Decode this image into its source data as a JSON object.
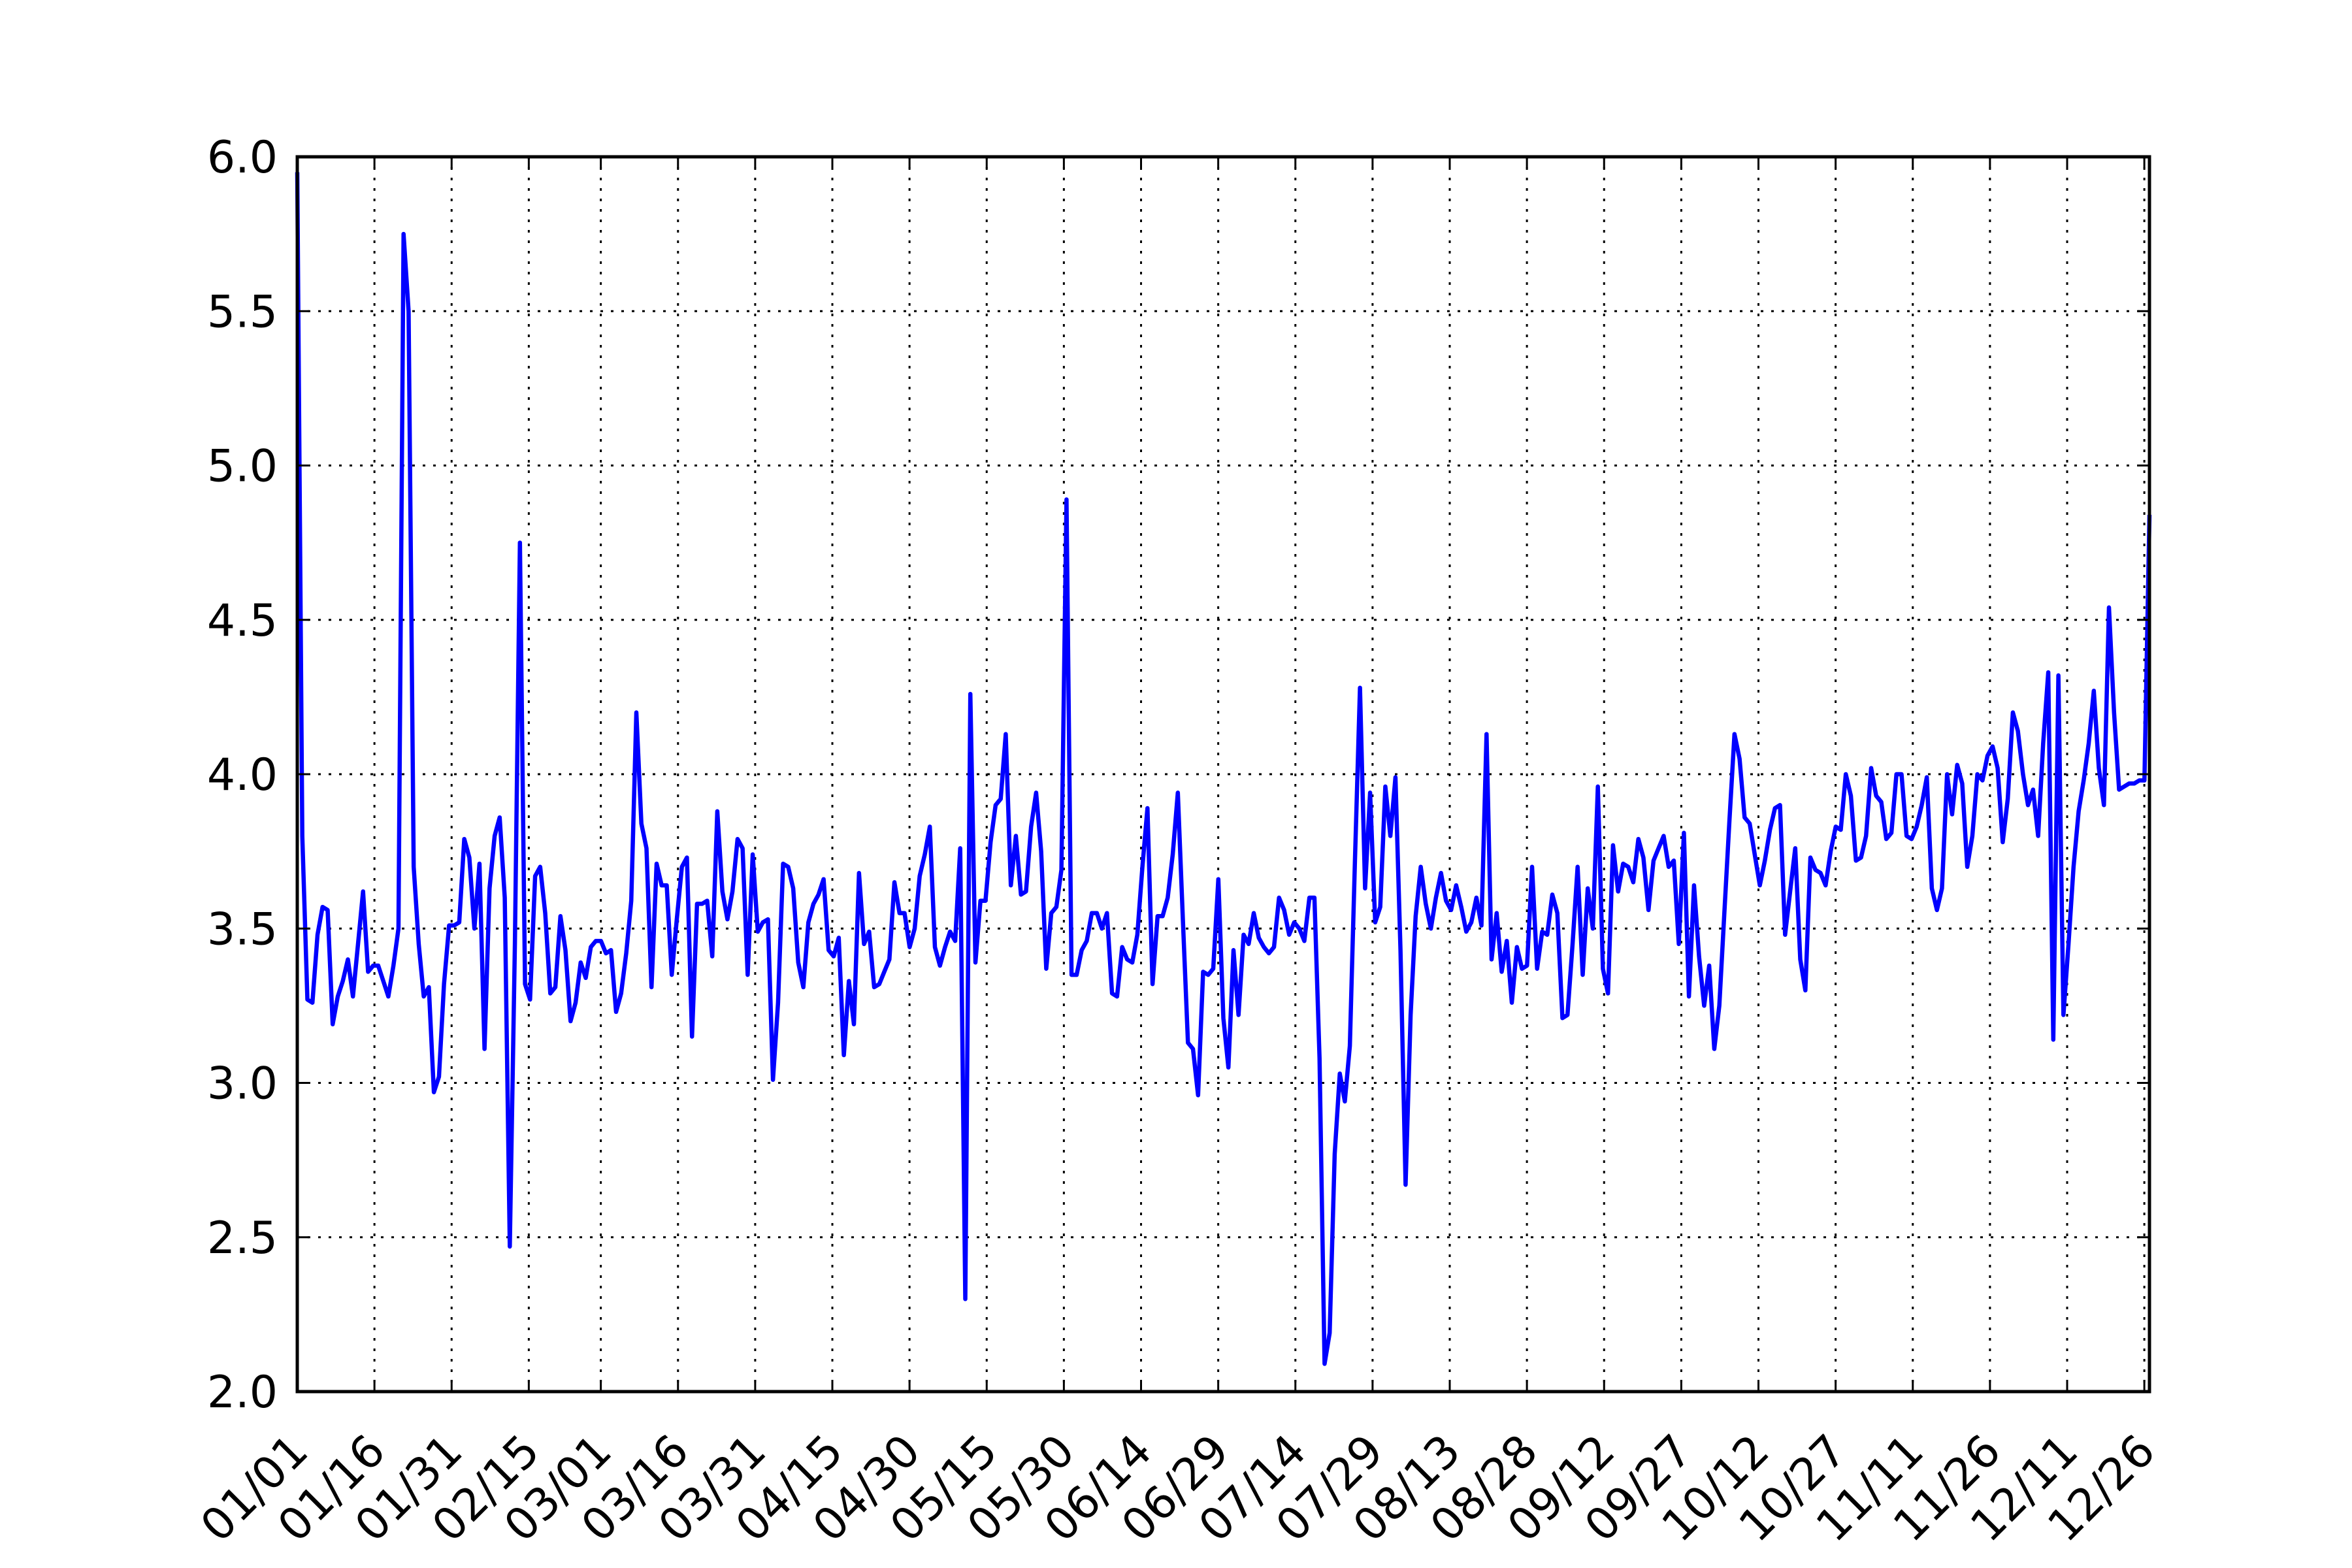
{
  "chart_data": {
    "type": "line",
    "title": "",
    "xlabel": "",
    "ylabel": "",
    "ylim": [
      2.0,
      6.0
    ],
    "xlim": [
      "01/01",
      "12/27"
    ],
    "grid": true,
    "colors": {
      "line": "#0000ff",
      "frame": "#000000",
      "background": "#ffffff"
    },
    "y_ticks": [
      "2.0",
      "2.5",
      "3.0",
      "3.5",
      "4.0",
      "4.5",
      "5.0",
      "5.5",
      "6.0"
    ],
    "x_ticks": [
      "01/01",
      "01/16",
      "01/31",
      "02/15",
      "03/01",
      "03/16",
      "03/31",
      "04/15",
      "04/30",
      "05/15",
      "05/30",
      "06/14",
      "06/29",
      "07/14",
      "07/29",
      "08/13",
      "08/28",
      "09/12",
      "09/27",
      "10/12",
      "10/27",
      "11/11",
      "11/26",
      "12/11",
      "12/26"
    ],
    "series": [
      {
        "values": [
          5.95,
          3.8,
          3.27,
          3.26,
          3.48,
          3.57,
          3.56,
          3.19,
          3.28,
          3.33,
          3.4,
          3.28,
          3.45,
          3.62,
          3.36,
          3.38,
          3.38,
          3.33,
          3.28,
          3.38,
          3.5,
          5.75,
          5.5,
          3.7,
          3.45,
          3.28,
          3.31,
          2.97,
          3.02,
          3.32,
          3.51,
          3.51,
          3.52,
          3.79,
          3.73,
          3.5,
          3.71,
          3.11,
          3.63,
          3.8,
          3.86,
          3.6,
          2.47,
          3.45,
          4.75,
          3.32,
          3.27,
          3.67,
          3.7,
          3.55,
          3.29,
          3.31,
          3.54,
          3.43,
          3.2,
          3.26,
          3.39,
          3.34,
          3.44,
          3.46,
          3.46,
          3.42,
          3.43,
          3.23,
          3.29,
          3.42,
          3.59,
          4.2,
          3.84,
          3.76,
          3.31,
          3.71,
          3.64,
          3.64,
          3.35,
          3.53,
          3.7,
          3.73,
          3.15,
          3.58,
          3.58,
          3.59,
          3.41,
          3.88,
          3.62,
          3.53,
          3.62,
          3.79,
          3.76,
          3.35,
          3.74,
          3.49,
          3.52,
          3.53,
          3.01,
          3.26,
          3.71,
          3.7,
          3.63,
          3.39,
          3.31,
          3.52,
          3.58,
          3.61,
          3.66,
          3.43,
          3.41,
          3.47,
          3.09,
          3.33,
          3.19,
          3.68,
          3.45,
          3.49,
          3.31,
          3.32,
          3.36,
          3.4,
          3.65,
          3.55,
          3.55,
          3.44,
          3.5,
          3.67,
          3.74,
          3.83,
          3.44,
          3.38,
          3.44,
          3.49,
          3.46,
          3.76,
          2.3,
          4.26,
          3.39,
          3.59,
          3.59,
          3.78,
          3.9,
          3.92,
          4.13,
          3.64,
          3.8,
          3.61,
          3.62,
          3.83,
          3.94,
          3.75,
          3.37,
          3.55,
          3.57,
          3.69,
          4.89,
          3.35,
          3.35,
          3.43,
          3.46,
          3.55,
          3.55,
          3.5,
          3.55,
          3.29,
          3.28,
          3.44,
          3.4,
          3.39,
          3.48,
          3.7,
          3.89,
          3.32,
          3.54,
          3.54,
          3.6,
          3.74,
          3.94,
          3.53,
          3.13,
          3.11,
          2.96,
          3.36,
          3.35,
          3.37,
          3.66,
          3.21,
          3.05,
          3.43,
          3.22,
          3.48,
          3.45,
          3.55,
          3.47,
          3.44,
          3.42,
          3.44,
          3.6,
          3.56,
          3.48,
          3.52,
          3.5,
          3.46,
          3.6,
          3.6,
          3.08,
          2.09,
          2.19,
          2.77,
          3.03,
          2.94,
          3.12,
          3.72,
          4.28,
          3.63,
          3.94,
          3.52,
          3.57,
          3.96,
          3.8,
          3.99,
          3.43,
          2.67,
          3.22,
          3.54,
          3.7,
          3.58,
          3.5,
          3.6,
          3.68,
          3.59,
          3.56,
          3.64,
          3.57,
          3.49,
          3.52,
          3.6,
          3.51,
          4.13,
          3.4,
          3.55,
          3.36,
          3.46,
          3.26,
          3.44,
          3.37,
          3.38,
          3.7,
          3.37,
          3.49,
          3.48,
          3.61,
          3.55,
          3.21,
          3.22,
          3.45,
          3.7,
          3.35,
          3.63,
          3.5,
          3.96,
          3.37,
          3.29,
          3.77,
          3.62,
          3.71,
          3.7,
          3.65,
          3.79,
          3.73,
          3.56,
          3.72,
          3.76,
          3.8,
          3.7,
          3.72,
          3.45,
          3.81,
          3.28,
          3.64,
          3.41,
          3.25,
          3.38,
          3.11,
          3.25,
          3.55,
          3.85,
          4.13,
          4.05,
          3.86,
          3.84,
          3.74,
          3.64,
          3.72,
          3.82,
          3.89,
          3.9,
          3.48,
          3.62,
          3.76,
          3.4,
          3.3,
          3.73,
          3.69,
          3.68,
          3.64,
          3.75,
          3.83,
          3.82,
          4.0,
          3.93,
          3.72,
          3.73,
          3.8,
          4.02,
          3.93,
          3.91,
          3.79,
          3.81,
          4.0,
          4.0,
          3.8,
          3.79,
          3.83,
          3.9,
          3.99,
          3.63,
          3.56,
          3.63,
          4.0,
          3.87,
          4.03,
          3.97,
          3.7,
          3.8,
          4.0,
          3.98,
          4.06,
          4.09,
          4.02,
          3.78,
          3.92,
          4.2,
          4.14,
          4.0,
          3.9,
          3.95,
          3.8,
          4.1,
          4.33,
          3.14,
          4.32,
          3.22,
          3.45,
          3.7,
          3.88,
          3.98,
          4.1,
          4.27,
          4.02,
          3.9,
          4.54,
          4.2,
          3.95,
          3.96,
          3.97,
          3.97,
          3.98,
          3.98,
          4.84
        ]
      }
    ]
  }
}
